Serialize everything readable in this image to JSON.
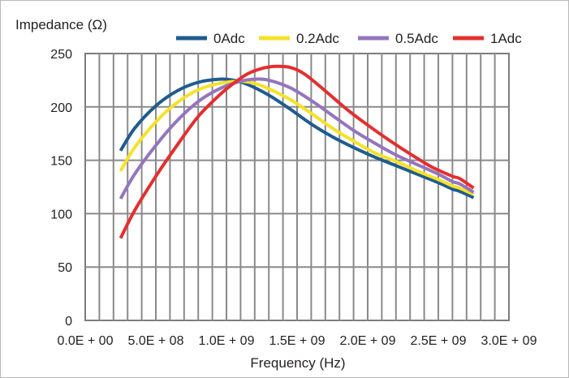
{
  "chart_data": {
    "type": "line",
    "ylabel": "Impedance (Ω)",
    "xlabel": "Frequency (Hz)",
    "xlim": [
      0,
      3000000000
    ],
    "ylim": [
      0,
      250
    ],
    "x_ticks": [
      {
        "value": 0,
        "label": "0.0E + 00"
      },
      {
        "value": 500000000,
        "label": "5.0E + 08"
      },
      {
        "value": 1000000000,
        "label": "1.0E + 09"
      },
      {
        "value": 1500000000,
        "label": "1.5E + 09"
      },
      {
        "value": 2000000000,
        "label": "2.0E + 09"
      },
      {
        "value": 2500000000,
        "label": "2.5E + 09"
      },
      {
        "value": 3000000000,
        "label": "3.0E + 09"
      }
    ],
    "y_ticks": [
      {
        "value": 0,
        "label": "0"
      },
      {
        "value": 50,
        "label": "50"
      },
      {
        "value": 100,
        "label": "100"
      },
      {
        "value": 150,
        "label": "150"
      },
      {
        "value": 200,
        "label": "200"
      },
      {
        "value": 250,
        "label": "250"
      }
    ],
    "grid": {
      "x_step": 100000000,
      "y_step": 50
    },
    "legend_position": "top",
    "series": [
      {
        "name": "0Adc",
        "color": "#1f5b8f",
        "x": [
          250000000,
          350000000,
          500000000,
          650000000,
          800000000,
          950000000,
          1050000000,
          1150000000,
          1300000000,
          1450000000,
          1600000000,
          1750000000,
          1900000000,
          2050000000,
          2200000000,
          2350000000,
          2500000000,
          2600000000,
          2650000000,
          2750000000
        ],
        "y": [
          159,
          180,
          201,
          215,
          223,
          226,
          225,
          221,
          211,
          198,
          184,
          172,
          162,
          153,
          145,
          137,
          129,
          123,
          121,
          115
        ]
      },
      {
        "name": "0.2Adc",
        "color": "#f6e12c",
        "x": [
          250000000,
          350000000,
          500000000,
          650000000,
          800000000,
          950000000,
          1100000000,
          1200000000,
          1300000000,
          1450000000,
          1600000000,
          1750000000,
          1900000000,
          2050000000,
          2200000000,
          2350000000,
          2500000000,
          2600000000,
          2650000000,
          2750000000
        ],
        "y": [
          140,
          162,
          186,
          204,
          216,
          222,
          224,
          222,
          217,
          207,
          194,
          180,
          168,
          157,
          149,
          140,
          132,
          126,
          124,
          118
        ]
      },
      {
        "name": "0.5Adc",
        "color": "#9475bd",
        "x": [
          250000000,
          350000000,
          500000000,
          650000000,
          800000000,
          950000000,
          1100000000,
          1200000000,
          1300000000,
          1450000000,
          1600000000,
          1750000000,
          1900000000,
          2050000000,
          2200000000,
          2350000000,
          2500000000,
          2600000000,
          2650000000,
          2750000000
        ],
        "y": [
          114,
          137,
          164,
          187,
          205,
          217,
          224,
          226,
          225,
          218,
          206,
          192,
          178,
          166,
          155,
          146,
          137,
          130,
          128,
          120
        ]
      },
      {
        "name": "1Adc",
        "color": "#e32f2f",
        "x": [
          250000000,
          350000000,
          500000000,
          650000000,
          800000000,
          950000000,
          1050000000,
          1150000000,
          1250000000,
          1350000000,
          1450000000,
          1550000000,
          1700000000,
          1850000000,
          2000000000,
          2150000000,
          2300000000,
          2450000000,
          2600000000,
          2650000000,
          2750000000
        ],
        "y": [
          77,
          103,
          135,
          164,
          191,
          211,
          222,
          231,
          236,
          238,
          237,
          231,
          215,
          198,
          183,
          169,
          156,
          144,
          135,
          133,
          124
        ]
      }
    ]
  }
}
